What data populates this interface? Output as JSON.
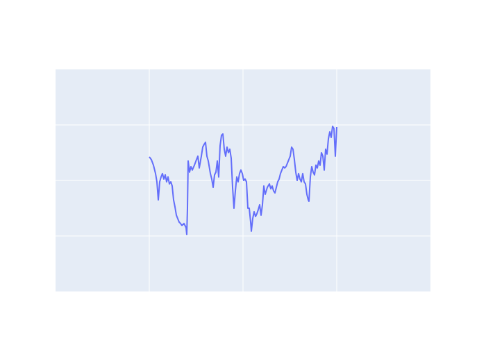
{
  "chart_data": {
    "type": "line",
    "x": [
      135,
      138,
      141,
      144,
      146,
      148,
      150,
      152,
      154,
      156,
      158,
      160,
      162,
      164,
      166,
      168,
      170,
      172,
      174,
      176,
      178,
      180,
      182,
      185,
      188,
      189,
      190,
      191,
      193,
      195,
      197,
      200,
      203,
      205,
      207,
      210,
      212,
      214,
      216,
      218,
      220,
      223,
      225,
      227,
      229,
      231,
      233,
      235,
      237,
      239,
      241,
      243,
      245,
      247,
      249,
      251,
      253,
      255,
      257,
      259,
      261,
      263,
      265,
      267,
      269,
      271,
      273,
      275,
      277,
      279,
      281,
      282,
      284,
      286,
      288,
      290,
      292,
      294,
      296,
      298,
      300,
      302,
      305,
      308,
      310,
      312,
      314,
      316,
      318,
      320,
      322,
      324,
      326,
      328,
      330,
      332,
      334,
      336,
      338,
      340,
      342,
      344,
      346,
      348,
      350,
      352,
      354,
      356,
      358,
      360,
      362,
      364,
      365,
      367,
      369,
      371,
      373,
      375,
      377,
      379,
      381,
      383,
      385,
      387,
      389,
      391,
      393,
      395,
      397,
      399,
      401,
      403,
      405
    ],
    "series": [
      {
        "color": "#636efa",
        "values": [
          194,
          190,
          182,
          170,
          158,
          132,
          158,
          165,
          170,
          162,
          168,
          158,
          165,
          155,
          158,
          152,
          132,
          122,
          110,
          105,
          100,
          98,
          95,
          98,
          92,
          82,
          120,
          188,
          172,
          180,
          175,
          182,
          190,
          195,
          178,
          195,
          208,
          212,
          215,
          195,
          188,
          170,
          162,
          150,
          168,
          172,
          188,
          165,
          210,
          225,
          227,
          205,
          195,
          208,
          200,
          205,
          192,
          150,
          120,
          145,
          165,
          158,
          170,
          175,
          170,
          160,
          162,
          158,
          120,
          120,
          100,
          87,
          105,
          115,
          108,
          112,
          118,
          125,
          110,
          125,
          152,
          140,
          150,
          155,
          148,
          152,
          145,
          142,
          150,
          158,
          162,
          170,
          175,
          180,
          178,
          180,
          185,
          190,
          195,
          208,
          205,
          190,
          172,
          160,
          170,
          162,
          158,
          170,
          158,
          155,
          140,
          132,
          130,
          165,
          180,
          172,
          168,
          182,
          178,
          188,
          182,
          200,
          195,
          175,
          205,
          198,
          220,
          230,
          222,
          238,
          235,
          195,
          237
        ]
      }
    ],
    "xlim": [
      0,
      540
    ],
    "xticks": [
      135,
      270,
      405
    ],
    "ylim": [
      0,
      320
    ],
    "yticks": [
      80,
      160,
      240
    ],
    "grid": true,
    "background": "#e5ecf6"
  }
}
